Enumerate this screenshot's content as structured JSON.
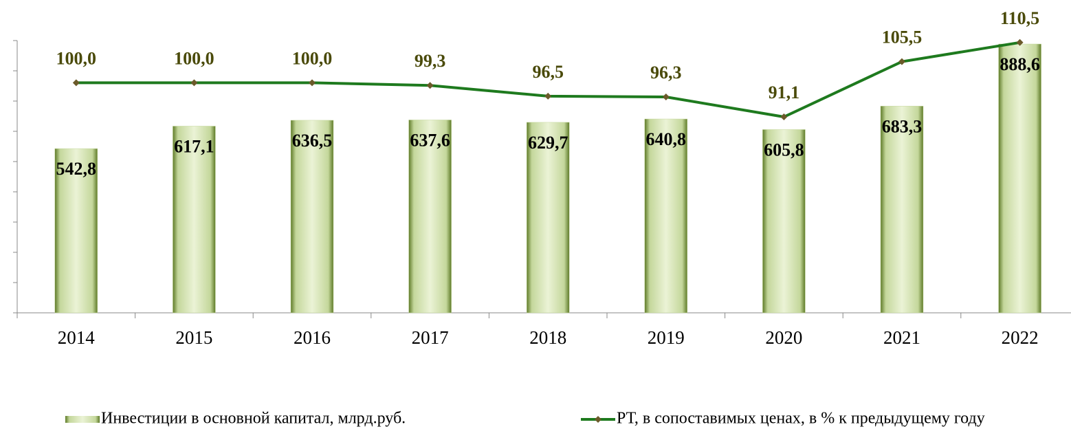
{
  "chart_data": {
    "type": "bar_line",
    "categories": [
      "2014",
      "2015",
      "2016",
      "2017",
      "2018",
      "2019",
      "2020",
      "2021",
      "2022"
    ],
    "ylim": [
      0,
      900
    ],
    "yticks": [
      0,
      100,
      200,
      300,
      400,
      500,
      600,
      700,
      800,
      900
    ],
    "y2lim": [
      40,
      111
    ],
    "series": [
      {
        "name": "Инвестиции в основной капитал, млрд.руб.",
        "type": "bar",
        "color": "#c4d79b",
        "values": [
          542.8,
          617.1,
          636.5,
          637.6,
          629.7,
          640.8,
          605.8,
          683.3,
          888.6
        ],
        "value_labels": [
          "542,8",
          "617,1",
          "636,5",
          "637,6",
          "629,7",
          "640,8",
          "605,8",
          "683,3",
          "888,6"
        ]
      },
      {
        "name": "РТ, в сопоставимых ценах, в % к предыдущему году",
        "type": "line",
        "axis": "y2",
        "color": "#1e7a1e",
        "values": [
          100.0,
          100.0,
          100.0,
          99.3,
          96.5,
          96.3,
          91.1,
          105.5,
          110.5
        ],
        "value_labels": [
          "100,0",
          "100,0",
          "100,0",
          "99,3",
          "96,5",
          "96,3",
          "91,1",
          "105,5",
          "110,5"
        ]
      }
    ]
  }
}
